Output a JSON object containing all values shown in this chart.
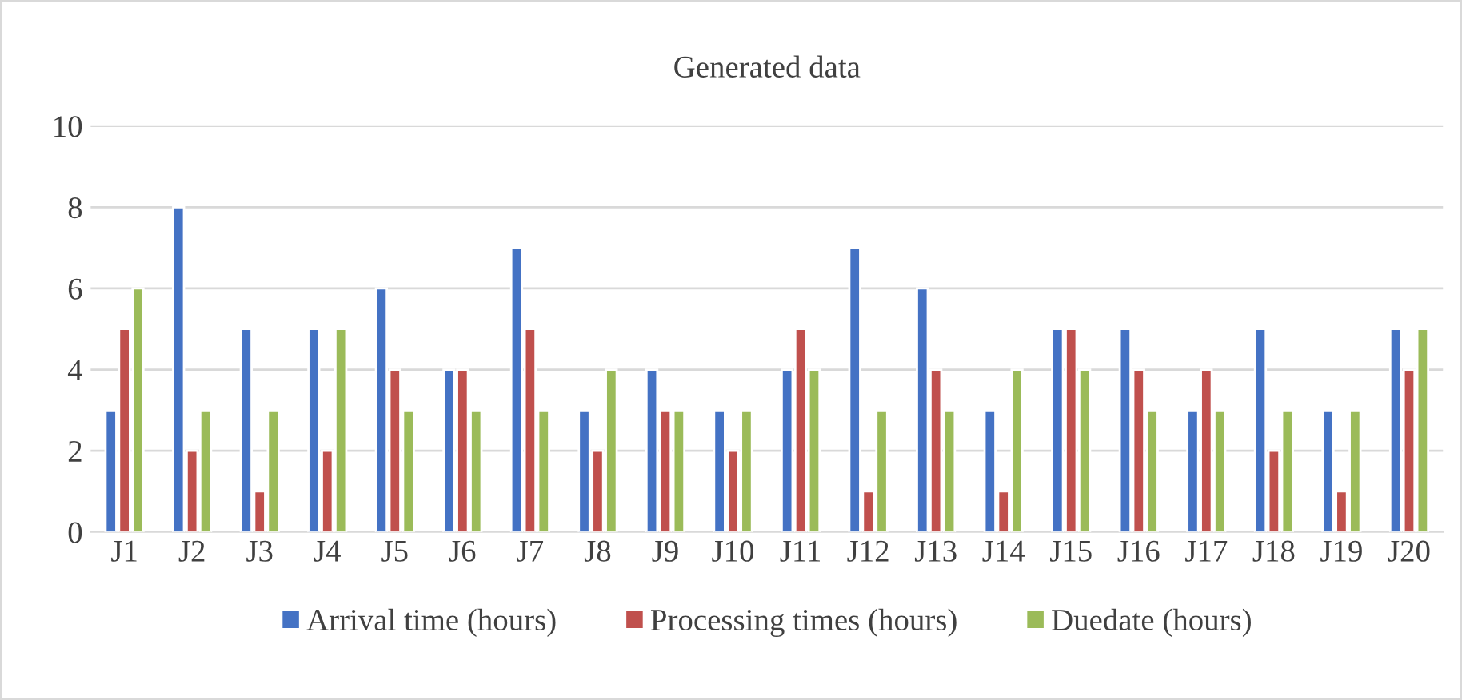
{
  "chart_data": {
    "type": "bar",
    "title": "Generated data",
    "categories": [
      "J1",
      "J2",
      "J3",
      "J4",
      "J5",
      "J6",
      "J7",
      "J8",
      "J9",
      "J10",
      "J11",
      "J12",
      "J13",
      "J14",
      "J15",
      "J16",
      "J17",
      "J18",
      "J19",
      "J20"
    ],
    "series": [
      {
        "name": "Arrival time (hours)",
        "color": "#4472c4",
        "values": [
          3,
          8,
          5,
          5,
          6,
          4,
          7,
          3,
          4,
          3,
          4,
          7,
          6,
          3,
          5,
          5,
          3,
          5,
          3,
          5
        ]
      },
      {
        "name": "Processing times (hours)",
        "color": "#c0504d",
        "values": [
          5,
          2,
          1,
          2,
          4,
          4,
          5,
          2,
          3,
          2,
          5,
          1,
          4,
          1,
          5,
          4,
          4,
          2,
          1,
          4
        ]
      },
      {
        "name": "Duedate (hours)",
        "color": "#9bbb59",
        "values": [
          6,
          3,
          3,
          5,
          3,
          3,
          3,
          4,
          3,
          3,
          4,
          3,
          3,
          4,
          4,
          3,
          3,
          3,
          3,
          5
        ]
      }
    ],
    "ylim": [
      0,
      10
    ],
    "yticks": [
      0,
      2,
      4,
      6,
      8,
      10
    ],
    "grid": "y",
    "legend": "bottom"
  }
}
